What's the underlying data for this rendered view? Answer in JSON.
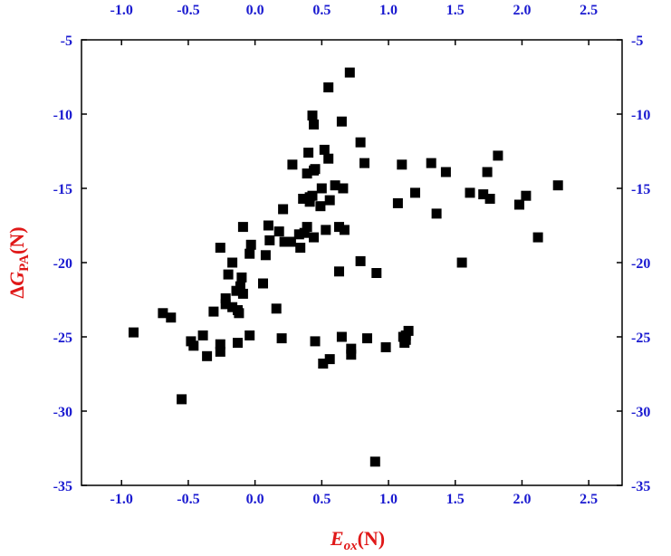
{
  "chart_data": {
    "type": "scatter",
    "title": "",
    "xlabel": {
      "main": "E",
      "sub": "ox",
      "suffix": "(N)"
    },
    "ylabel": {
      "prefix": "Δ",
      "main": "G",
      "sub": "PA",
      "suffix": "(N)"
    },
    "xlim": [
      -1.3,
      2.75
    ],
    "ylim": [
      -35,
      -5
    ],
    "xticks": [
      -1.0,
      -0.5,
      0.0,
      0.5,
      1.0,
      1.5,
      2.0,
      2.5
    ],
    "xtick_labels": [
      "-1.0",
      "-0.5",
      "0.0",
      "0.5",
      "1.0",
      "1.5",
      "2.0",
      "2.5"
    ],
    "yticks": [
      -35,
      -30,
      -25,
      -20,
      -15,
      -10,
      -5
    ],
    "ytick_labels": [
      "-35",
      "-30",
      "-25",
      "-20",
      "-15",
      "-10",
      "-5"
    ],
    "grid": false,
    "legend": null,
    "marker": "square",
    "colors": {
      "marker": "#000000",
      "tick_labels": "#1a1ad0",
      "axis_titles": "#e01818",
      "axes": "#000000"
    },
    "x": [
      0.71,
      0.55,
      0.43,
      0.44,
      0.65,
      0.79,
      0.52,
      0.4,
      0.55,
      0.82,
      0.45,
      0.44,
      0.28,
      0.39,
      0.41,
      0.6,
      0.5,
      0.56,
      0.43,
      0.36,
      0.41,
      0.66,
      0.49,
      0.21,
      0.39,
      0.33,
      0.37,
      0.63,
      0.67,
      0.53,
      0.44,
      0.1,
      0.18,
      0.27,
      0.22,
      0.11,
      0.34,
      -0.09,
      -0.03,
      -0.04,
      -0.26,
      0.08,
      -0.17,
      -0.2,
      0.79,
      0.63,
      0.91,
      -0.1,
      0.06,
      -0.11,
      -0.22,
      -0.14,
      -0.09,
      -0.22,
      0.16,
      -0.17,
      -0.13,
      -0.12,
      -0.31,
      -0.69,
      -0.63,
      -0.91,
      -0.39,
      -0.48,
      -0.46,
      -0.26,
      -0.13,
      -0.04,
      0.2,
      0.45,
      0.65,
      0.72,
      0.84,
      0.72,
      0.56,
      0.51,
      -0.26,
      -0.36,
      -0.55,
      0.98,
      1.11,
      1.12,
      1.13,
      1.15,
      1.13,
      0.9,
      1.1,
      1.32,
      1.43,
      1.2,
      1.36,
      1.07,
      1.61,
      1.71,
      1.76,
      1.74,
      1.82,
      1.55,
      1.98,
      2.03,
      2.27,
      2.12
    ],
    "y": [
      -7.2,
      -8.2,
      -10.1,
      -10.7,
      -10.5,
      -11.9,
      -12.4,
      -12.6,
      -13.0,
      -13.3,
      -13.7,
      -13.8,
      -13.4,
      -14.0,
      -15.6,
      -14.8,
      -15.0,
      -15.8,
      -15.5,
      -15.7,
      -15.9,
      -15.0,
      -16.2,
      -16.4,
      -17.6,
      -18.1,
      -18.0,
      -17.6,
      -17.8,
      -17.8,
      -18.3,
      -17.5,
      -17.9,
      -18.6,
      -18.6,
      -18.5,
      -19.0,
      -17.6,
      -18.8,
      -19.4,
      -19.0,
      -19.5,
      -20.0,
      -20.8,
      -19.9,
      -20.6,
      -20.7,
      -21.0,
      -21.4,
      -21.6,
      -22.4,
      -21.9,
      -22.1,
      -22.8,
      -23.1,
      -23.0,
      -23.2,
      -23.4,
      -23.3,
      -23.4,
      -23.7,
      -24.7,
      -24.9,
      -25.3,
      -25.6,
      -25.5,
      -25.4,
      -24.9,
      -25.1,
      -25.3,
      -25.0,
      -25.8,
      -25.1,
      -26.2,
      -26.5,
      -26.8,
      -26.0,
      -26.3,
      -29.2,
      -25.7,
      -25.0,
      -25.4,
      -25.2,
      -24.6,
      -24.9,
      -33.4,
      -13.4,
      -13.3,
      -13.9,
      -15.3,
      -16.7,
      -16.0,
      -15.3,
      -15.4,
      -15.7,
      -13.9,
      -12.8,
      -20.0,
      -16.1,
      -15.5,
      -14.8,
      -18.3
    ]
  }
}
